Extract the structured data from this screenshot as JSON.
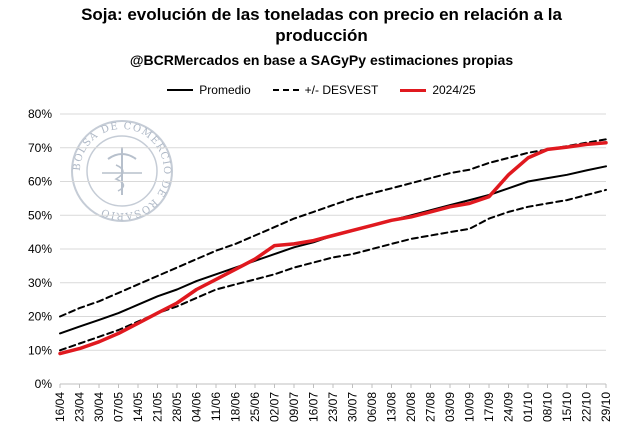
{
  "title_line1": "Soja: evolución de las toneladas con precio en relación a la",
  "title_line2": "producción",
  "subtitle": "@BCRMercados en base a SAGyPy estimaciones propias",
  "watermark": "BOLSA DE COMERCIO DE ROSARIO",
  "colors": {
    "promedio": "#000000",
    "desvest": "#000000",
    "current": "#e0191f",
    "grid": "#d9d9d9"
  },
  "chart_data": {
    "type": "line",
    "title": "Soja: evolución de las toneladas con precio en relación a la producción",
    "subtitle": "@BCRMercados en base a SAGyPy estimaciones propias",
    "xlabel": "",
    "ylabel": "",
    "ylim": [
      0,
      80
    ],
    "yticks": [
      "0%",
      "10%",
      "20%",
      "30%",
      "40%",
      "50%",
      "60%",
      "70%",
      "80%"
    ],
    "grid": true,
    "legend_position": "top-center",
    "categories": [
      "16/04",
      "23/04",
      "30/04",
      "07/05",
      "14/05",
      "21/05",
      "28/05",
      "04/06",
      "11/06",
      "18/06",
      "25/06",
      "02/07",
      "09/07",
      "16/07",
      "23/07",
      "30/07",
      "06/08",
      "13/08",
      "20/08",
      "27/08",
      "03/09",
      "10/09",
      "17/09",
      "24/09",
      "01/10",
      "08/10",
      "15/10",
      "22/10",
      "29/10"
    ],
    "series": [
      {
        "name": "Promedio",
        "style": "solid",
        "values": [
          15,
          17,
          19,
          21,
          23.5,
          26,
          28,
          30.5,
          32.5,
          34.5,
          36.5,
          38.5,
          40.5,
          42,
          44,
          45.5,
          47,
          48.5,
          50,
          51.5,
          53,
          54.5,
          56,
          58,
          60,
          61,
          62,
          63.3,
          64.5
        ]
      },
      {
        "name": "+/- DESVEST (superior)",
        "legend": "+/- DESVEST",
        "style": "dashed",
        "values": [
          20,
          22.5,
          24.5,
          27,
          29.5,
          32,
          34.5,
          37,
          39.5,
          41.5,
          44,
          46.5,
          49,
          51,
          53,
          55,
          56.5,
          58,
          59.5,
          61,
          62.5,
          63.5,
          65.5,
          67,
          68.5,
          69.5,
          70.5,
          71.5,
          72.5
        ]
      },
      {
        "name": "+/- DESVEST (inferior)",
        "legend": "+/- DESVEST",
        "style": "dashed",
        "values": [
          10,
          12,
          14,
          16,
          18.5,
          21,
          23,
          25.5,
          28,
          29.5,
          31,
          32.5,
          34.5,
          36,
          37.5,
          38.5,
          40,
          41.5,
          43,
          44,
          45,
          46,
          49,
          51,
          52.5,
          53.5,
          54.5,
          56,
          57.5
        ]
      },
      {
        "name": "2024/25",
        "style": "red",
        "values": [
          9,
          10.5,
          12.5,
          15,
          18,
          21,
          24,
          28,
          31,
          34,
          37,
          41,
          41.5,
          42.5,
          44,
          45.5,
          47,
          48.5,
          49.5,
          51,
          52.5,
          53.5,
          55.5,
          62,
          67,
          69.5,
          70.2,
          71,
          71.5
        ]
      }
    ],
    "legend": [
      "Promedio",
      "+/- DESVEST",
      "2024/25"
    ]
  }
}
